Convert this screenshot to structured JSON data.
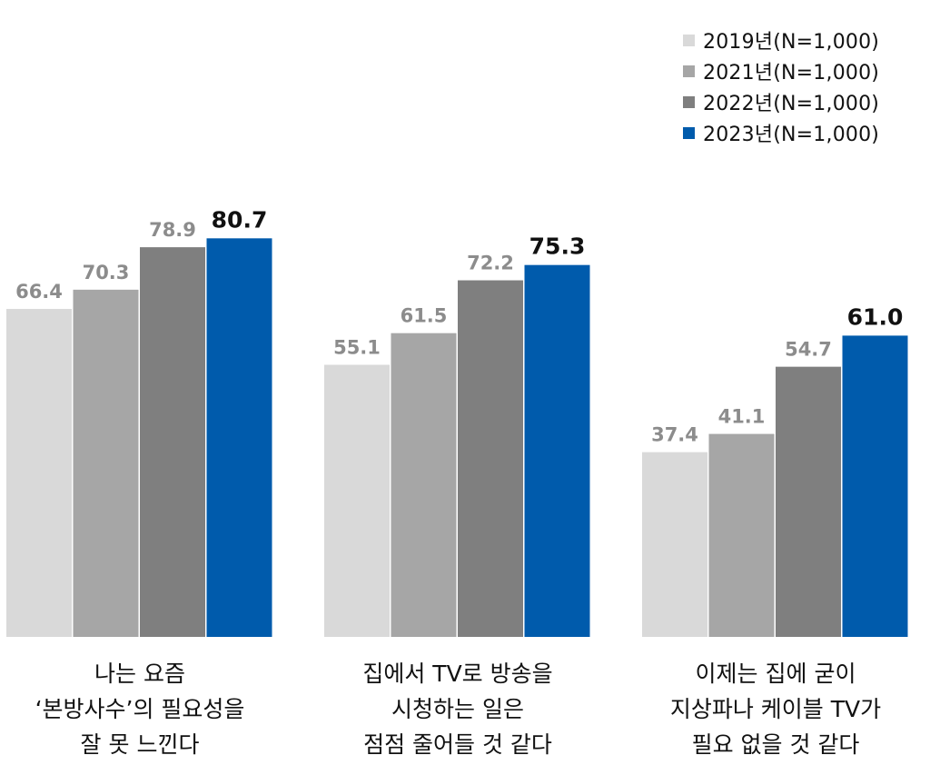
{
  "chart_data": {
    "type": "bar",
    "categories": [
      [
        "나는 요즘",
        "‘본방사수’의 필요성을",
        "잘 못 느낀다"
      ],
      [
        "집에서 TV로 방송을",
        "시청하는 일은",
        "점점 줄어들 것 같다"
      ],
      [
        "이제는 집에 굳이",
        "지상파나 케이블 TV가",
        "필요 없을 것 같다"
      ]
    ],
    "series": [
      {
        "name": "2019년(N=1,000)",
        "color": "#d9d9d9",
        "values": [
          66.4,
          55.1,
          37.4
        ],
        "labels": [
          "66.4",
          "55.1",
          "37.4"
        ]
      },
      {
        "name": "2021년(N=1,000)",
        "color": "#a6a6a6",
        "values": [
          70.3,
          61.5,
          41.1
        ],
        "labels": [
          "70.3",
          "61.5",
          "41.1"
        ]
      },
      {
        "name": "2022년(N=1,000)",
        "color": "#7f7f7f",
        "values": [
          78.9,
          72.2,
          54.7
        ],
        "labels": [
          "78.9",
          "72.2",
          "54.7"
        ]
      },
      {
        "name": "2023년(N=1,000)",
        "color": "#005bac",
        "values": [
          80.7,
          75.3,
          61.0
        ],
        "labels": [
          "80.7",
          "75.3",
          "61.0"
        ]
      }
    ],
    "ylim": [
      0,
      100
    ],
    "grid": false,
    "legend_position": "top-right",
    "highlight_label_color": "#111111",
    "label_color": "#8c8c8c"
  }
}
